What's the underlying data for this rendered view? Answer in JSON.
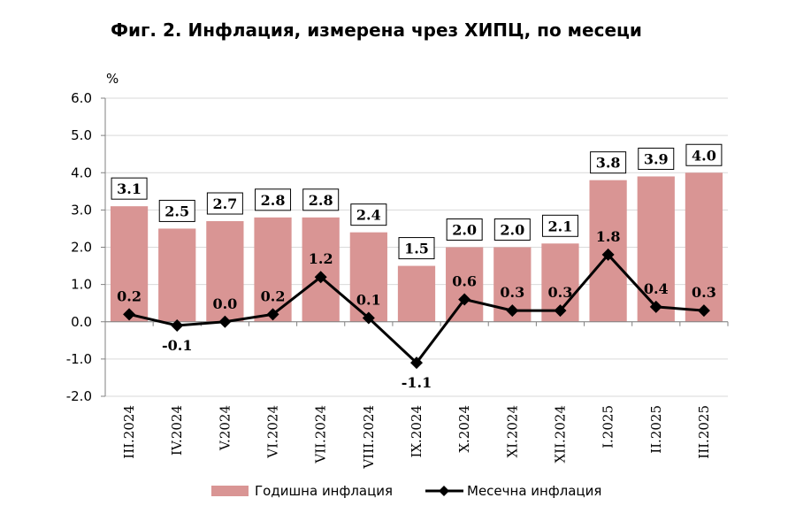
{
  "chart_data": {
    "type": "bar",
    "title": "Фиг. 2. Инфлация, измерена чрез ХИПЦ, по месеци",
    "unit": "%",
    "categories": [
      "III.2024",
      "IV.2024",
      "V.2024",
      "VI.2024",
      "VII.2024",
      "VIII.2024",
      "IX.2024",
      "X.2024",
      "XI.2024",
      "XII.2024",
      "I.2025",
      "II.2025",
      "III.2025"
    ],
    "ylim": [
      -2.0,
      6.0
    ],
    "yticks": [
      6.0,
      5.0,
      4.0,
      3.0,
      2.0,
      1.0,
      0.0,
      -1.0,
      -2.0
    ],
    "ytick_labels": [
      "6.0",
      "5.0",
      "4.0",
      "3.0",
      "2.0",
      "1.0",
      "0.0",
      "-1.0",
      "-2.0"
    ],
    "grid": true,
    "legend_position": "bottom",
    "series": [
      {
        "name": "Годишна инфлация",
        "type": "bar",
        "color": "#d99594",
        "values": [
          3.1,
          2.5,
          2.7,
          2.8,
          2.8,
          2.4,
          1.5,
          2.0,
          2.0,
          2.1,
          3.8,
          3.9,
          4.0
        ],
        "labels": [
          "3.1",
          "2.5",
          "2.7",
          "2.8",
          "2.8",
          "2.4",
          "1.5",
          "2.0",
          "2.0",
          "2.1",
          "3.8",
          "3.9",
          "4.0"
        ]
      },
      {
        "name": "Месечна инфлация",
        "type": "line",
        "color": "#000000",
        "values": [
          0.2,
          -0.1,
          0.0,
          0.2,
          1.2,
          0.1,
          -1.1,
          0.6,
          0.3,
          0.3,
          1.8,
          0.4,
          0.3
        ],
        "labels": [
          "0.2",
          "-0.1",
          "0.0",
          "0.2",
          "1.2",
          "0.1",
          "-1.1",
          "0.6",
          "0.3",
          "0.3",
          "1.8",
          "0.4",
          "0.3"
        ]
      }
    ]
  }
}
